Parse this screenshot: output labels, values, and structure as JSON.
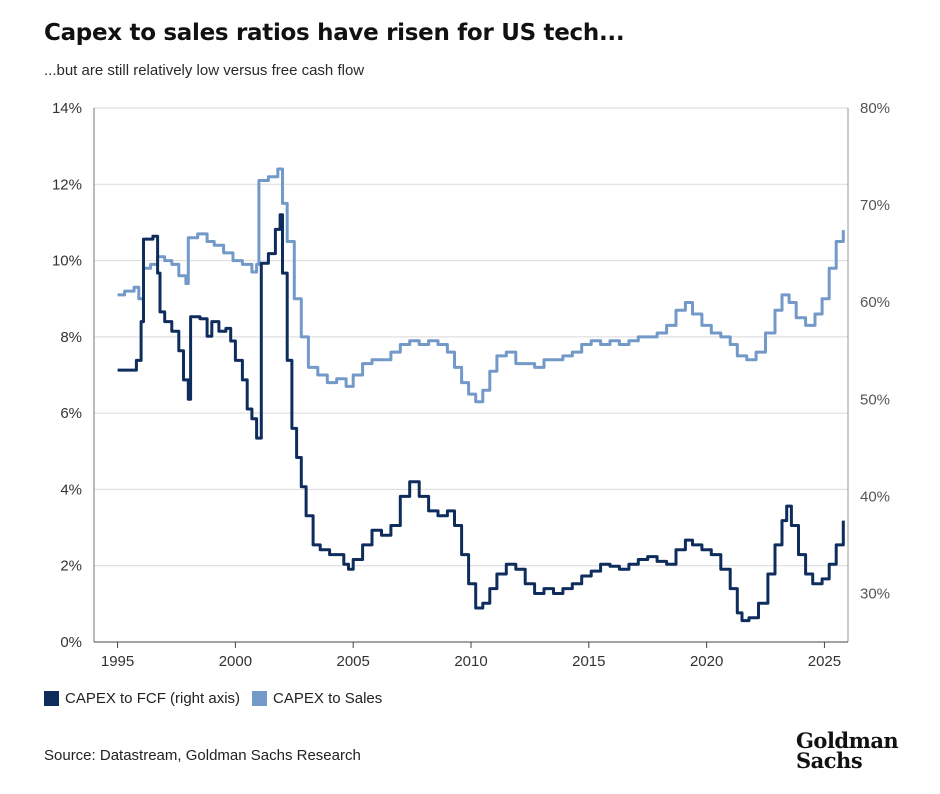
{
  "chart_data": {
    "type": "line",
    "title": "Capex to sales ratios have risen for US tech...",
    "subtitle": "...but are still relatively low versus free cash flow",
    "source": "Source: Datastream, Goldman Sachs Research",
    "logo_text": [
      "Goldman",
      "Sachs"
    ],
    "x_ticks": [
      1995,
      2000,
      2005,
      2010,
      2015,
      2020,
      2025
    ],
    "x_range": [
      1994,
      2026
    ],
    "y_left": {
      "range": [
        0,
        14
      ],
      "ticks": [
        0,
        2,
        4,
        6,
        8,
        10,
        12,
        14
      ],
      "tick_labels": [
        "0%",
        "2%",
        "4%",
        "6%",
        "8%",
        "10%",
        "12%",
        "14%"
      ]
    },
    "y_right": {
      "range": [
        25,
        80
      ],
      "ticks": [
        30,
        40,
        50,
        60,
        70,
        80
      ],
      "tick_labels": [
        "30%",
        "40%",
        "50%",
        "60%",
        "70%",
        "80%"
      ]
    },
    "grid": true,
    "legend_position": "bottom-left",
    "series": [
      {
        "name": "CAPEX to FCF (right axis)",
        "axis": "right",
        "color": "#0e2d5c",
        "points": [
          [
            1995.0,
            53.0
          ],
          [
            1995.5,
            53.0
          ],
          [
            1995.8,
            54.0
          ],
          [
            1996.0,
            58.0
          ],
          [
            1996.1,
            66.5
          ],
          [
            1996.5,
            66.8
          ],
          [
            1996.7,
            63.0
          ],
          [
            1996.8,
            59.0
          ],
          [
            1997.0,
            58.0
          ],
          [
            1997.3,
            57.0
          ],
          [
            1997.6,
            55.0
          ],
          [
            1997.8,
            52.0
          ],
          [
            1998.0,
            50.0
          ],
          [
            1998.1,
            58.5
          ],
          [
            1998.5,
            58.3
          ],
          [
            1998.8,
            56.5
          ],
          [
            1999.0,
            58.0
          ],
          [
            1999.3,
            57.0
          ],
          [
            1999.6,
            57.3
          ],
          [
            1999.8,
            56.0
          ],
          [
            2000.0,
            54.0
          ],
          [
            2000.3,
            52.0
          ],
          [
            2000.5,
            49.0
          ],
          [
            2000.7,
            48.0
          ],
          [
            2000.9,
            46.0
          ],
          [
            2001.0,
            46.0
          ],
          [
            2001.1,
            64.0
          ],
          [
            2001.4,
            65.0
          ],
          [
            2001.7,
            67.5
          ],
          [
            2001.9,
            69.0
          ],
          [
            2002.0,
            63.0
          ],
          [
            2002.2,
            54.0
          ],
          [
            2002.4,
            47.0
          ],
          [
            2002.6,
            44.0
          ],
          [
            2002.8,
            41.0
          ],
          [
            2003.0,
            38.0
          ],
          [
            2003.3,
            35.0
          ],
          [
            2003.6,
            34.5
          ],
          [
            2004.0,
            34.0
          ],
          [
            2004.3,
            34.0
          ],
          [
            2004.6,
            33.0
          ],
          [
            2004.8,
            32.5
          ],
          [
            2005.0,
            33.5
          ],
          [
            2005.4,
            35.0
          ],
          [
            2005.8,
            36.5
          ],
          [
            2006.2,
            36.0
          ],
          [
            2006.6,
            37.0
          ],
          [
            2007.0,
            40.0
          ],
          [
            2007.4,
            41.5
          ],
          [
            2007.8,
            40.0
          ],
          [
            2008.2,
            38.5
          ],
          [
            2008.6,
            38.0
          ],
          [
            2009.0,
            38.5
          ],
          [
            2009.3,
            37.0
          ],
          [
            2009.6,
            34.0
          ],
          [
            2009.9,
            31.0
          ],
          [
            2010.2,
            28.5
          ],
          [
            2010.5,
            29.0
          ],
          [
            2010.8,
            30.5
          ],
          [
            2011.1,
            32.0
          ],
          [
            2011.5,
            33.0
          ],
          [
            2011.9,
            32.5
          ],
          [
            2012.3,
            31.0
          ],
          [
            2012.7,
            30.0
          ],
          [
            2013.1,
            30.5
          ],
          [
            2013.5,
            30.0
          ],
          [
            2013.9,
            30.5
          ],
          [
            2014.3,
            31.0
          ],
          [
            2014.7,
            31.8
          ],
          [
            2015.1,
            32.3
          ],
          [
            2015.5,
            33.0
          ],
          [
            2015.9,
            32.8
          ],
          [
            2016.3,
            32.5
          ],
          [
            2016.7,
            33.0
          ],
          [
            2017.1,
            33.5
          ],
          [
            2017.5,
            33.8
          ],
          [
            2017.9,
            33.3
          ],
          [
            2018.3,
            33.0
          ],
          [
            2018.7,
            34.5
          ],
          [
            2019.1,
            35.5
          ],
          [
            2019.4,
            35.0
          ],
          [
            2019.8,
            34.5
          ],
          [
            2020.2,
            34.0
          ],
          [
            2020.6,
            32.5
          ],
          [
            2021.0,
            30.5
          ],
          [
            2021.3,
            28.0
          ],
          [
            2021.5,
            27.2
          ],
          [
            2021.8,
            27.5
          ],
          [
            2022.2,
            29.0
          ],
          [
            2022.6,
            32.0
          ],
          [
            2022.9,
            35.0
          ],
          [
            2023.2,
            37.5
          ],
          [
            2023.4,
            39.0
          ],
          [
            2023.6,
            37.0
          ],
          [
            2023.9,
            34.0
          ],
          [
            2024.2,
            32.0
          ],
          [
            2024.5,
            31.0
          ],
          [
            2024.9,
            31.5
          ],
          [
            2025.2,
            33.0
          ],
          [
            2025.5,
            35.0
          ],
          [
            2025.8,
            37.5
          ]
        ]
      },
      {
        "name": "CAPEX to Sales",
        "axis": "left",
        "color": "#7399c8",
        "points": [
          [
            1995.0,
            9.1
          ],
          [
            1995.3,
            9.2
          ],
          [
            1995.7,
            9.3
          ],
          [
            1995.9,
            9.0
          ],
          [
            1996.1,
            9.8
          ],
          [
            1996.4,
            9.9
          ],
          [
            1996.7,
            10.1
          ],
          [
            1997.0,
            10.0
          ],
          [
            1997.3,
            9.9
          ],
          [
            1997.6,
            9.6
          ],
          [
            1997.9,
            9.4
          ],
          [
            1998.0,
            10.6
          ],
          [
            1998.4,
            10.7
          ],
          [
            1998.8,
            10.5
          ],
          [
            1999.1,
            10.4
          ],
          [
            1999.5,
            10.2
          ],
          [
            1999.9,
            10.0
          ],
          [
            2000.3,
            9.9
          ],
          [
            2000.7,
            9.7
          ],
          [
            2000.9,
            9.9
          ],
          [
            2001.0,
            12.1
          ],
          [
            2001.4,
            12.2
          ],
          [
            2001.8,
            12.4
          ],
          [
            2002.0,
            11.5
          ],
          [
            2002.2,
            10.5
          ],
          [
            2002.5,
            9.0
          ],
          [
            2002.8,
            8.0
          ],
          [
            2003.1,
            7.2
          ],
          [
            2003.5,
            7.0
          ],
          [
            2003.9,
            6.8
          ],
          [
            2004.3,
            6.9
          ],
          [
            2004.7,
            6.7
          ],
          [
            2005.0,
            7.0
          ],
          [
            2005.4,
            7.3
          ],
          [
            2005.8,
            7.4
          ],
          [
            2006.2,
            7.4
          ],
          [
            2006.6,
            7.6
          ],
          [
            2007.0,
            7.8
          ],
          [
            2007.4,
            7.9
          ],
          [
            2007.8,
            7.8
          ],
          [
            2008.2,
            7.9
          ],
          [
            2008.6,
            7.8
          ],
          [
            2009.0,
            7.6
          ],
          [
            2009.3,
            7.2
          ],
          [
            2009.6,
            6.8
          ],
          [
            2009.9,
            6.5
          ],
          [
            2010.2,
            6.3
          ],
          [
            2010.5,
            6.6
          ],
          [
            2010.8,
            7.1
          ],
          [
            2011.1,
            7.5
          ],
          [
            2011.5,
            7.6
          ],
          [
            2011.9,
            7.3
          ],
          [
            2012.3,
            7.3
          ],
          [
            2012.7,
            7.2
          ],
          [
            2013.1,
            7.4
          ],
          [
            2013.5,
            7.4
          ],
          [
            2013.9,
            7.5
          ],
          [
            2014.3,
            7.6
          ],
          [
            2014.7,
            7.8
          ],
          [
            2015.1,
            7.9
          ],
          [
            2015.5,
            7.8
          ],
          [
            2015.9,
            7.9
          ],
          [
            2016.3,
            7.8
          ],
          [
            2016.7,
            7.9
          ],
          [
            2017.1,
            8.0
          ],
          [
            2017.5,
            8.0
          ],
          [
            2017.9,
            8.1
          ],
          [
            2018.3,
            8.3
          ],
          [
            2018.7,
            8.7
          ],
          [
            2019.1,
            8.9
          ],
          [
            2019.4,
            8.6
          ],
          [
            2019.8,
            8.3
          ],
          [
            2020.2,
            8.1
          ],
          [
            2020.6,
            8.0
          ],
          [
            2021.0,
            7.8
          ],
          [
            2021.3,
            7.5
          ],
          [
            2021.7,
            7.4
          ],
          [
            2022.1,
            7.6
          ],
          [
            2022.5,
            8.1
          ],
          [
            2022.9,
            8.7
          ],
          [
            2023.2,
            9.1
          ],
          [
            2023.5,
            8.9
          ],
          [
            2023.8,
            8.5
          ],
          [
            2024.2,
            8.3
          ],
          [
            2024.6,
            8.6
          ],
          [
            2024.9,
            9.0
          ],
          [
            2025.2,
            9.8
          ],
          [
            2025.5,
            10.5
          ],
          [
            2025.8,
            10.8
          ]
        ]
      }
    ]
  }
}
